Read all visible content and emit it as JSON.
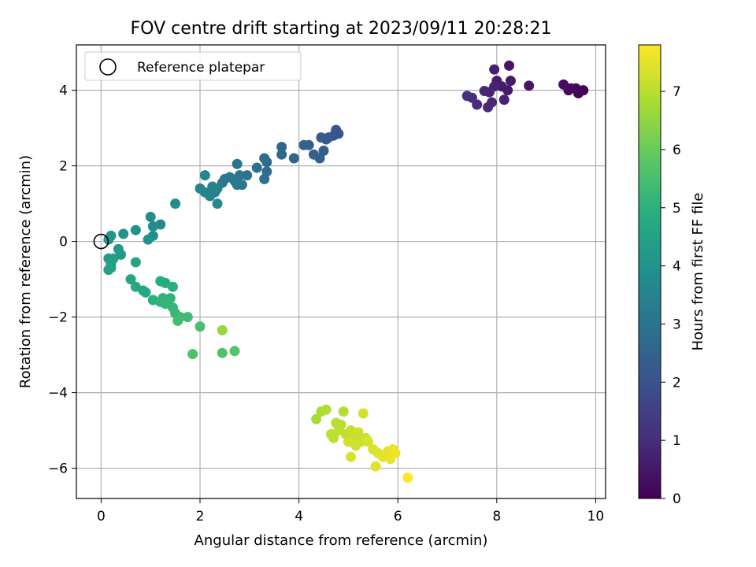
{
  "chart_data": {
    "type": "scatter",
    "title": "FOV centre drift starting at 2023/09/11 20:28:21",
    "xlabel": "Angular distance from reference (arcmin)",
    "ylabel": "Rotation from reference (arcmin)",
    "xlim": [
      -0.5,
      10.2
    ],
    "ylim": [
      -6.8,
      5.2
    ],
    "x_ticks": [
      0,
      2,
      4,
      6,
      8,
      10
    ],
    "y_ticks": [
      -6,
      -4,
      -2,
      0,
      2,
      4
    ],
    "grid": true,
    "legend": {
      "location": "upper-left",
      "entries": [
        {
          "label": "Reference platepar",
          "marker": "open-circle",
          "x": 0,
          "y": 0
        }
      ]
    },
    "colorbar": {
      "label": "Hours from first FF file",
      "colormap": "viridis",
      "min": 0,
      "max": 7.8,
      "ticks": [
        0,
        1,
        2,
        3,
        4,
        5,
        6,
        7
      ]
    },
    "series": [
      {
        "points": [
          [
            9.75,
            4.0,
            0.05
          ],
          [
            9.65,
            3.92,
            0.1
          ],
          [
            9.6,
            4.05,
            0.15
          ],
          [
            9.45,
            4.0,
            0.2
          ],
          [
            9.5,
            4.05,
            0.25
          ],
          [
            9.35,
            4.15,
            0.3
          ],
          [
            8.65,
            4.12,
            0.45
          ],
          [
            8.25,
            4.65,
            0.5
          ],
          [
            8.28,
            4.25,
            0.55
          ],
          [
            8.22,
            4.0,
            0.6
          ],
          [
            8.1,
            4.1,
            0.62
          ],
          [
            8.0,
            4.25,
            0.65
          ],
          [
            7.95,
            4.55,
            0.7
          ],
          [
            8.15,
            3.75,
            0.75
          ],
          [
            7.95,
            4.1,
            0.8
          ],
          [
            7.85,
            3.95,
            0.85
          ],
          [
            7.75,
            3.98,
            0.88
          ],
          [
            7.9,
            3.68,
            0.9
          ],
          [
            7.82,
            3.55,
            0.95
          ],
          [
            7.6,
            3.62,
            1.0
          ],
          [
            7.5,
            3.8,
            1.05
          ],
          [
            7.4,
            3.85,
            1.1
          ],
          [
            4.75,
            2.95,
            2.0
          ],
          [
            4.8,
            2.85,
            2.05
          ],
          [
            4.7,
            2.8,
            2.1
          ],
          [
            4.6,
            2.75,
            2.15
          ],
          [
            4.55,
            2.7,
            2.2
          ],
          [
            4.45,
            2.75,
            2.25
          ],
          [
            4.5,
            2.4,
            2.3
          ],
          [
            4.42,
            2.2,
            2.35
          ],
          [
            4.3,
            2.3,
            2.4
          ],
          [
            4.2,
            2.55,
            2.45
          ],
          [
            4.1,
            2.55,
            2.5
          ],
          [
            3.9,
            2.2,
            2.55
          ],
          [
            3.65,
            2.5,
            2.6
          ],
          [
            3.65,
            2.3,
            2.65
          ],
          [
            3.35,
            2.1,
            2.7
          ],
          [
            3.3,
            2.2,
            2.75
          ],
          [
            3.35,
            1.85,
            2.8
          ],
          [
            3.3,
            1.65,
            2.85
          ],
          [
            3.15,
            1.95,
            2.9
          ],
          [
            2.95,
            1.75,
            2.95
          ],
          [
            2.75,
            2.05,
            3.0
          ],
          [
            2.8,
            1.75,
            3.05
          ],
          [
            2.85,
            1.5,
            3.1
          ],
          [
            2.75,
            1.5,
            3.15
          ],
          [
            2.7,
            1.6,
            3.2
          ],
          [
            2.6,
            1.7,
            3.25
          ],
          [
            2.45,
            1.55,
            3.3
          ],
          [
            2.35,
            1.4,
            3.35
          ],
          [
            2.3,
            1.3,
            3.4
          ],
          [
            2.2,
            1.2,
            3.45
          ],
          [
            2.1,
            1.3,
            3.5
          ],
          [
            2.0,
            1.4,
            3.55
          ],
          [
            2.1,
            1.75,
            3.6
          ],
          [
            2.35,
            1.0,
            3.65
          ],
          [
            2.25,
            1.45,
            3.5
          ],
          [
            2.5,
            1.65,
            3.2
          ],
          [
            1.5,
            1.0,
            3.7
          ],
          [
            1.2,
            0.45,
            3.75
          ],
          [
            1.05,
            0.4,
            3.8
          ],
          [
            1.0,
            0.65,
            3.85
          ],
          [
            1.05,
            0.15,
            3.9
          ],
          [
            0.95,
            0.05,
            3.95
          ],
          [
            0.7,
            0.3,
            4.0
          ],
          [
            0.45,
            0.2,
            4.05
          ],
          [
            0.2,
            0.15,
            4.1
          ],
          [
            0.15,
            0.05,
            4.12
          ],
          [
            0.35,
            -0.2,
            4.2
          ],
          [
            0.4,
            -0.35,
            4.25
          ],
          [
            0.25,
            -0.45,
            4.3
          ],
          [
            0.15,
            -0.45,
            4.35
          ],
          [
            0.2,
            -0.6,
            4.4
          ],
          [
            0.15,
            -0.75,
            4.45
          ],
          [
            0.2,
            -0.7,
            4.5
          ],
          [
            0.7,
            -0.55,
            4.55
          ],
          [
            0.6,
            -1.0,
            4.6
          ],
          [
            0.7,
            -1.2,
            4.65
          ],
          [
            0.85,
            -1.3,
            4.7
          ],
          [
            0.9,
            -1.35,
            4.75
          ],
          [
            1.2,
            -1.05,
            4.8
          ],
          [
            1.3,
            -1.1,
            4.85
          ],
          [
            1.45,
            -1.2,
            4.9
          ],
          [
            1.05,
            -1.55,
            4.95
          ],
          [
            1.25,
            -1.5,
            5.0
          ],
          [
            1.4,
            -1.5,
            5.05
          ],
          [
            1.2,
            -1.6,
            5.1
          ],
          [
            1.3,
            -1.65,
            5.15
          ],
          [
            1.45,
            -1.75,
            5.2
          ],
          [
            1.5,
            -1.9,
            5.25
          ],
          [
            1.6,
            -2.0,
            5.3
          ],
          [
            1.75,
            -2.0,
            5.35
          ],
          [
            1.55,
            -2.1,
            5.4
          ],
          [
            2.0,
            -2.25,
            5.5
          ],
          [
            1.85,
            -2.98,
            5.6
          ],
          [
            2.45,
            -2.95,
            5.65
          ],
          [
            2.7,
            -2.9,
            5.7
          ],
          [
            2.45,
            -2.35,
            6.6
          ],
          [
            4.35,
            -4.7,
            6.8
          ],
          [
            4.45,
            -4.5,
            6.85
          ],
          [
            4.55,
            -4.45,
            6.9
          ],
          [
            4.9,
            -4.5,
            6.95
          ],
          [
            4.75,
            -4.8,
            7.0
          ],
          [
            4.85,
            -4.85,
            7.0
          ],
          [
            4.65,
            -5.1,
            7.05
          ],
          [
            4.7,
            -5.2,
            7.05
          ],
          [
            4.8,
            -5.0,
            7.1
          ],
          [
            4.95,
            -5.1,
            7.1
          ],
          [
            5.05,
            -5.0,
            7.15
          ],
          [
            5.1,
            -5.2,
            7.15
          ],
          [
            5.2,
            -5.05,
            7.2
          ],
          [
            5.25,
            -5.3,
            7.2
          ],
          [
            5.15,
            -5.4,
            7.25
          ],
          [
            5.35,
            -5.2,
            7.25
          ],
          [
            5.3,
            -4.55,
            7.3
          ],
          [
            5.0,
            -5.3,
            7.3
          ],
          [
            5.05,
            -5.7,
            7.35
          ],
          [
            5.4,
            -5.3,
            7.35
          ],
          [
            5.5,
            -5.5,
            7.4
          ],
          [
            5.6,
            -5.6,
            7.45
          ],
          [
            5.55,
            -5.95,
            7.45
          ],
          [
            5.7,
            -5.7,
            7.5
          ],
          [
            5.8,
            -5.55,
            7.5
          ],
          [
            5.85,
            -5.75,
            7.55
          ],
          [
            5.9,
            -5.5,
            7.55
          ],
          [
            5.95,
            -5.6,
            7.6
          ],
          [
            6.2,
            -6.25,
            7.8
          ]
        ]
      }
    ]
  }
}
